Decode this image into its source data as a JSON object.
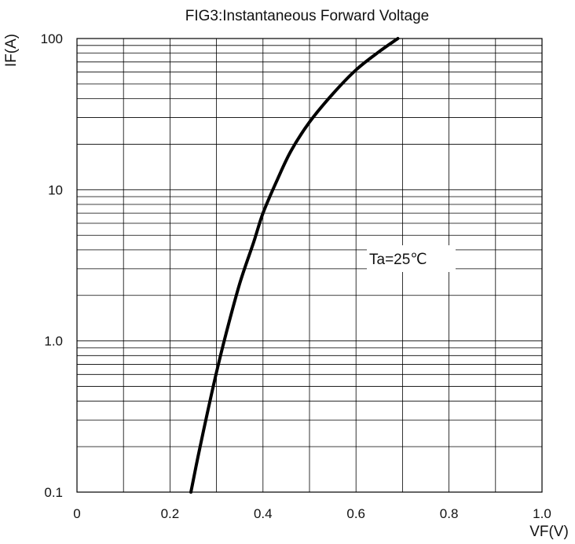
{
  "chart_data": {
    "type": "line",
    "title": "FIG3:Instantaneous Forward Voltage",
    "xlabel": "VF(V)",
    "ylabel": "IF(A)",
    "xlim": [
      0,
      1.0
    ],
    "ylim": [
      0.1,
      100
    ],
    "yscale": "log",
    "grid": true,
    "x_ticks": [
      0,
      0.2,
      0.4,
      0.6,
      0.8,
      1.0
    ],
    "x_tick_labels": [
      "0",
      "0.2",
      "0.4",
      "0.6",
      "0.8",
      "1.0"
    ],
    "y_ticks": [
      0.1,
      1,
      10,
      100
    ],
    "y_tick_labels": [
      "0.1",
      "1.0",
      "10",
      "100"
    ],
    "annotation": "Ta=25℃",
    "series": [
      {
        "color": "#000000",
        "x": [
          0.245,
          0.26,
          0.28,
          0.3,
          0.32,
          0.35,
          0.38,
          0.4,
          0.43,
          0.46,
          0.5,
          0.55,
          0.6,
          0.65,
          0.69
        ],
        "y": [
          0.1,
          0.17,
          0.33,
          0.62,
          1.1,
          2.4,
          4.5,
          7.0,
          11.5,
          18,
          28,
          43,
          62,
          82,
          100
        ]
      }
    ]
  }
}
